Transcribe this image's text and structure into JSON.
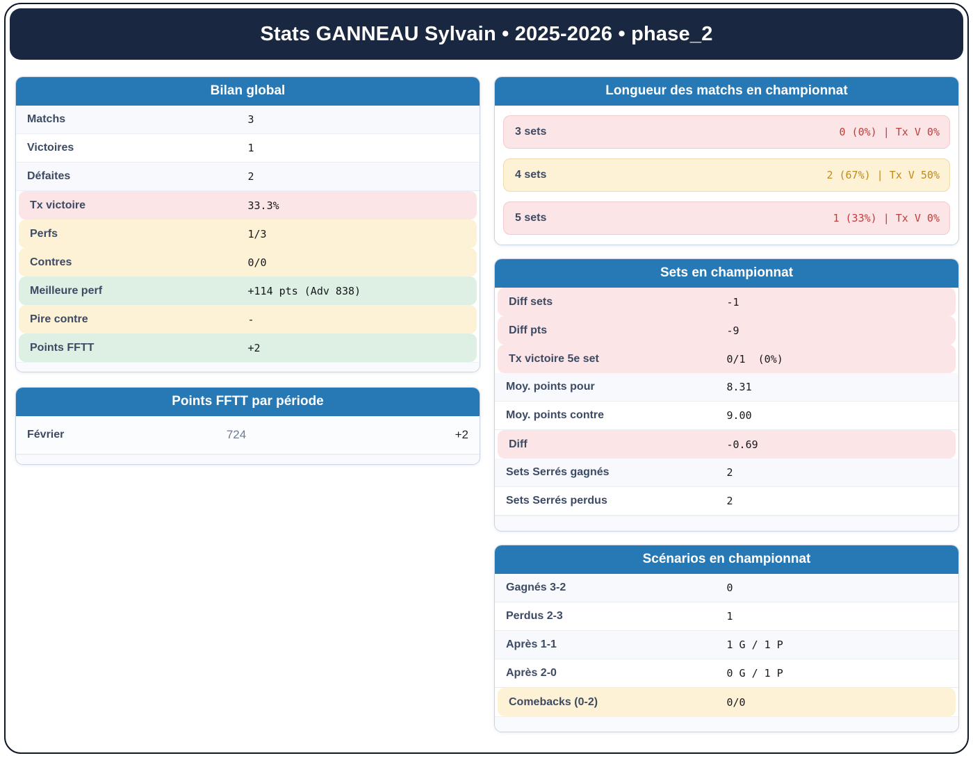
{
  "header": {
    "title": "Stats GANNEAU Sylvain • 2025-2026 • phase_2"
  },
  "colors": {
    "banner_navy": "#1a2740",
    "accent_blue": "#2779b5",
    "bad_bg": "#fce5e6",
    "warn_bg": "#fdf1d6",
    "good_bg": "#def0e4",
    "bad_text": "#c23a3a",
    "warn_text": "#bd8a1d"
  },
  "cards": {
    "bilan": {
      "title": "Bilan global",
      "rows": [
        {
          "label": "Matchs",
          "value": "3",
          "tone": "plain"
        },
        {
          "label": "Victoires",
          "value": "1",
          "tone": "plain"
        },
        {
          "label": "Défaites",
          "value": "2",
          "tone": "plain"
        },
        {
          "label": "Tx victoire",
          "value": "33.3%",
          "tone": "bad"
        },
        {
          "label": "Perfs",
          "value": "1/3",
          "tone": "warn"
        },
        {
          "label": "Contres",
          "value": "0/0",
          "tone": "warn"
        },
        {
          "label": "Meilleure perf",
          "value": "+114 pts (Adv 838)",
          "tone": "good"
        },
        {
          "label": "Pire contre",
          "value": "-",
          "tone": "warn"
        },
        {
          "label": "Points FFTT",
          "value": "+2",
          "tone": "good"
        }
      ]
    },
    "points_fftt": {
      "title": "Points FFTT par période",
      "rows": [
        {
          "label": "Février",
          "mid": "724",
          "value": "+2",
          "tone": "plain"
        }
      ]
    },
    "longueur": {
      "title": "Longueur des matchs en championnat",
      "rows": [
        {
          "label": "3 sets",
          "value": "0 (0%) | Tx V 0%",
          "tone": "bad"
        },
        {
          "label": "4 sets",
          "value": "2 (67%) | Tx V 50%",
          "tone": "warn"
        },
        {
          "label": "5 sets",
          "value": "1 (33%) | Tx V 0%",
          "tone": "bad"
        }
      ]
    },
    "sets": {
      "title": "Sets en championnat",
      "rows": [
        {
          "label": "Diff sets",
          "value": "-1",
          "tone": "bad"
        },
        {
          "label": "Diff pts",
          "value": "-9",
          "tone": "bad"
        },
        {
          "label": "Tx victoire 5e set",
          "value": "0/1  (0%)",
          "tone": "bad"
        },
        {
          "label": "Moy. points pour",
          "value": "8.31",
          "tone": "plain"
        },
        {
          "label": "Moy. points contre",
          "value": "9.00",
          "tone": "plain"
        },
        {
          "label": "Diff",
          "value": "-0.69",
          "tone": "bad"
        },
        {
          "label": "Sets Serrés gagnés",
          "value": "2",
          "tone": "plain"
        },
        {
          "label": "Sets Serrés perdus",
          "value": "2",
          "tone": "plain"
        }
      ]
    },
    "scenarios": {
      "title": "Scénarios en championnat",
      "rows": [
        {
          "label": "Gagnés 3-2",
          "value": "0",
          "tone": "plain"
        },
        {
          "label": "Perdus 2-3",
          "value": "1",
          "tone": "plain"
        },
        {
          "label": "Après 1-1",
          "value": "1 G / 1 P",
          "tone": "plain"
        },
        {
          "label": "Après 2-0",
          "value": "0 G / 1 P",
          "tone": "plain"
        },
        {
          "label": "Comebacks (0-2)",
          "value": "0/0",
          "tone": "warn"
        }
      ]
    }
  }
}
